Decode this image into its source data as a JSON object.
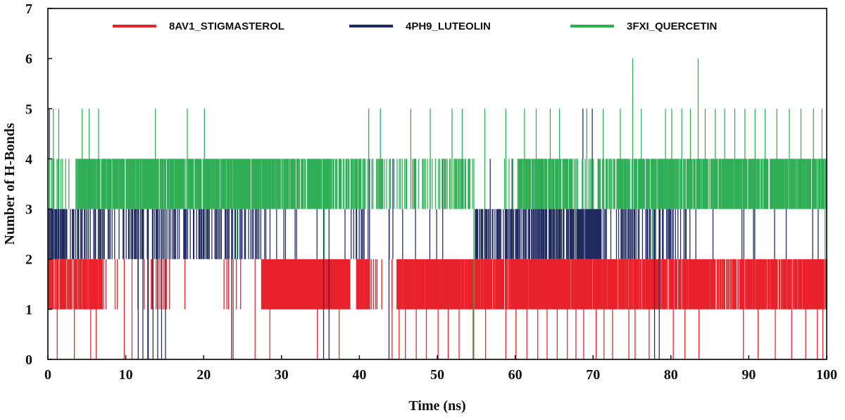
{
  "chart_data": {
    "type": "line",
    "title": "",
    "xlabel": "Time (ns)",
    "ylabel": "Number of H-Bonds",
    "xlim": [
      0,
      100
    ],
    "ylim": [
      0,
      7
    ],
    "xticks": [
      "0",
      "10",
      "20",
      "30",
      "40",
      "50",
      "60",
      "70",
      "80",
      "90",
      "100"
    ],
    "yticks": [
      "0",
      "1",
      "2",
      "3",
      "4",
      "5",
      "6",
      "7"
    ],
    "grid": false,
    "legend_position": "top",
    "series": [
      {
        "name": "8AV1_STIGMASTEROL",
        "color": "#e8212a",
        "baseline": 1,
        "segments": [
          [
            0,
            0.6,
            "A"
          ],
          [
            0.6,
            7.5,
            "A"
          ],
          [
            7.5,
            13,
            "B"
          ],
          [
            13,
            14.6,
            "C"
          ],
          [
            14.6,
            15.6,
            "D"
          ],
          [
            15.6,
            23,
            "B"
          ],
          [
            23,
            27.4,
            "B"
          ],
          [
            27.4,
            38.8,
            "E"
          ],
          [
            38.8,
            39.6,
            "B"
          ],
          [
            39.6,
            41.2,
            "F"
          ],
          [
            41.2,
            43,
            "G"
          ],
          [
            43,
            44.8,
            "B"
          ],
          [
            44.8,
            53,
            "F"
          ],
          [
            53,
            54.6,
            "F"
          ],
          [
            54.6,
            60,
            "F"
          ],
          [
            60,
            68,
            "E"
          ],
          [
            68,
            73,
            "F"
          ],
          [
            73,
            82,
            "A"
          ],
          [
            82,
            86,
            "A"
          ],
          [
            86,
            88,
            "C"
          ],
          [
            88,
            100,
            "A"
          ]
        ],
        "spikes": [
          [
            0.3,
            2
          ],
          [
            1.2,
            0
          ],
          [
            1.7,
            2
          ],
          [
            3.4,
            0
          ],
          [
            5.5,
            0
          ],
          [
            6.2,
            0
          ],
          [
            9.8,
            0
          ],
          [
            10.8,
            0
          ],
          [
            12.8,
            0
          ],
          [
            13.9,
            2
          ],
          [
            17.6,
            2
          ],
          [
            23.2,
            2
          ],
          [
            23.8,
            0
          ],
          [
            26.6,
            0
          ],
          [
            28.5,
            0
          ],
          [
            34.6,
            0
          ],
          [
            37.4,
            0
          ],
          [
            41.8,
            2
          ],
          [
            44.2,
            0
          ],
          [
            45.1,
            0
          ],
          [
            45.9,
            0
          ],
          [
            47.3,
            0
          ],
          [
            48.6,
            0
          ],
          [
            50.1,
            0
          ],
          [
            51.4,
            0
          ],
          [
            52.8,
            0
          ],
          [
            53.4,
            1
          ],
          [
            54.6,
            0
          ],
          [
            56.2,
            0
          ],
          [
            58.8,
            0
          ],
          [
            60.1,
            0
          ],
          [
            61.5,
            0
          ],
          [
            62.9,
            0
          ],
          [
            64.1,
            0
          ],
          [
            65.4,
            0
          ],
          [
            66.7,
            0
          ],
          [
            67.8,
            0
          ],
          [
            68.8,
            0
          ],
          [
            70.4,
            0
          ],
          [
            71.4,
            0
          ],
          [
            72.5,
            0
          ],
          [
            74.6,
            0
          ],
          [
            75.4,
            0
          ],
          [
            77.2,
            0
          ],
          [
            80.3,
            0
          ],
          [
            81.8,
            0
          ],
          [
            83.6,
            0
          ],
          [
            89.3,
            0
          ],
          [
            91.2,
            0
          ],
          [
            93.4,
            0
          ],
          [
            95.5,
            0
          ],
          [
            97.3,
            0
          ],
          [
            98.8,
            0
          ],
          [
            99.5,
            0
          ]
        ]
      },
      {
        "name": "4PH9_LUTEOLIN",
        "color": "#1f2a60",
        "baseline": 2,
        "segments": [
          [
            0,
            5,
            "C"
          ],
          [
            5,
            14,
            "D"
          ],
          [
            14,
            27.4,
            "D"
          ],
          [
            27.4,
            38.8,
            "B"
          ],
          [
            38.8,
            41.2,
            "D"
          ],
          [
            41.2,
            54.6,
            "B"
          ],
          [
            54.6,
            66,
            "C"
          ],
          [
            66,
            68,
            "C"
          ],
          [
            68,
            71,
            "E"
          ],
          [
            71,
            82,
            "D"
          ],
          [
            82,
            100,
            "B"
          ]
        ],
        "spikes": [
          [
            0.2,
            5
          ],
          [
            11.6,
            0
          ],
          [
            12.2,
            0
          ],
          [
            12.9,
            0
          ],
          [
            13.5,
            0
          ],
          [
            14.1,
            0
          ],
          [
            14.6,
            0
          ],
          [
            15.1,
            0
          ],
          [
            23.6,
            0
          ],
          [
            35.4,
            0
          ],
          [
            36.1,
            0
          ],
          [
            40.6,
            4
          ],
          [
            41.3,
            4
          ],
          [
            43.8,
            0
          ],
          [
            44.3,
            4
          ],
          [
            47.2,
            4
          ],
          [
            50.7,
            4
          ],
          [
            56.8,
            4
          ],
          [
            59.6,
            4
          ],
          [
            63.4,
            4
          ],
          [
            68.7,
            5
          ],
          [
            69.9,
            5
          ],
          [
            71.3,
            4
          ],
          [
            74.1,
            4
          ],
          [
            77.9,
            0
          ],
          [
            78.5,
            0
          ],
          [
            80.9,
            4
          ],
          [
            85.4,
            4
          ],
          [
            90.6,
            4
          ],
          [
            94.8,
            4
          ],
          [
            98.2,
            4
          ]
        ]
      },
      {
        "name": "3FXI_QUERCETIN",
        "color": "#2fae55",
        "baseline": 3,
        "segments": [
          [
            0,
            3.6,
            "D"
          ],
          [
            3.6,
            13.2,
            "A"
          ],
          [
            13.2,
            27,
            "A"
          ],
          [
            27,
            36,
            "A"
          ],
          [
            36,
            40.6,
            "C"
          ],
          [
            40.6,
            54.6,
            "D"
          ],
          [
            54.6,
            60.3,
            "B"
          ],
          [
            60.3,
            67.5,
            "A"
          ],
          [
            67.5,
            70.6,
            "G"
          ],
          [
            70.6,
            73,
            "C"
          ],
          [
            73,
            82,
            "A"
          ],
          [
            82,
            100,
            "A"
          ]
        ],
        "spikes": [
          [
            0.7,
            5
          ],
          [
            1.4,
            5
          ],
          [
            4.4,
            5
          ],
          [
            5.3,
            5
          ],
          [
            6.5,
            5
          ],
          [
            13.8,
            5
          ],
          [
            17.9,
            5
          ],
          [
            20.1,
            5
          ],
          [
            24.3,
            2
          ],
          [
            35.5,
            2
          ],
          [
            41.2,
            5
          ],
          [
            42.7,
            5
          ],
          [
            46.6,
            5
          ],
          [
            49.1,
            5
          ],
          [
            51.9,
            5
          ],
          [
            53.2,
            5
          ],
          [
            54.7,
            0
          ],
          [
            56.1,
            5
          ],
          [
            58.8,
            5
          ],
          [
            61.2,
            5
          ],
          [
            62.7,
            5
          ],
          [
            64.5,
            5
          ],
          [
            65.7,
            5
          ],
          [
            69.2,
            5
          ],
          [
            71.3,
            5
          ],
          [
            73.5,
            5
          ],
          [
            75.1,
            6
          ],
          [
            76.2,
            5
          ],
          [
            77.6,
            2
          ],
          [
            79.3,
            5
          ],
          [
            80.1,
            5
          ],
          [
            81.4,
            5
          ],
          [
            82.5,
            5
          ],
          [
            83.5,
            6
          ],
          [
            84.4,
            5
          ],
          [
            85.7,
            5
          ],
          [
            86.9,
            5
          ],
          [
            88.2,
            5
          ],
          [
            89.5,
            5
          ],
          [
            90.8,
            5
          ],
          [
            92.1,
            5
          ],
          [
            93.6,
            5
          ],
          [
            95.2,
            5
          ],
          [
            96.7,
            5
          ],
          [
            98.3,
            5
          ],
          [
            99.4,
            5
          ],
          [
            99.8,
            1
          ]
        ]
      }
    ]
  }
}
